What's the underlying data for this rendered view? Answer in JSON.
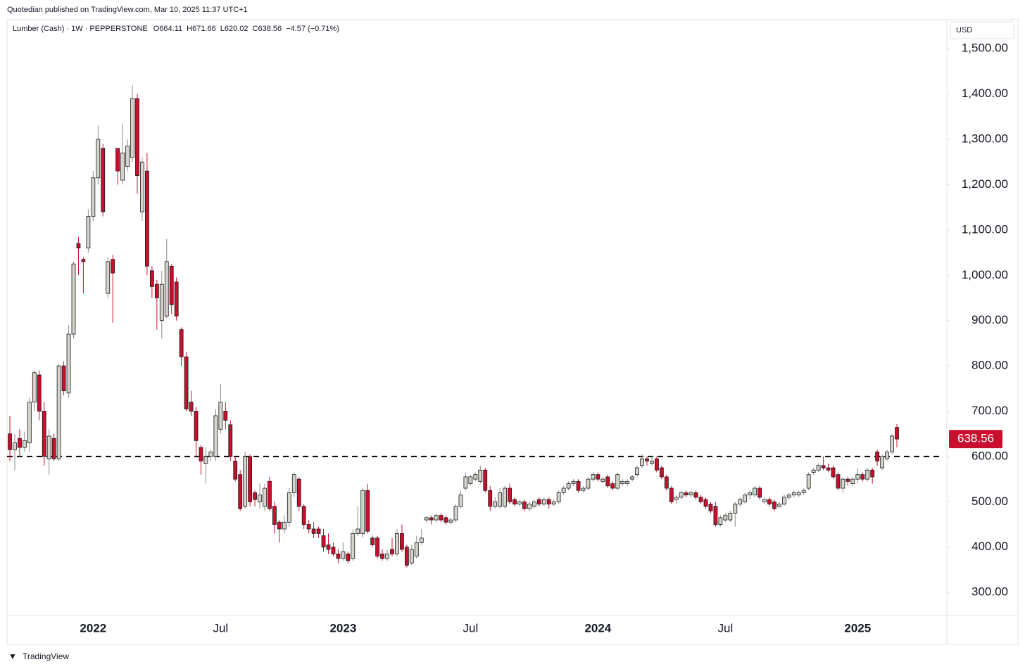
{
  "publisher": "Quotedian published on TradingView.com, Mar 10, 2025 11:37 UTC+1",
  "footer": "TradingView",
  "chart_data": {
    "type": "candlestick",
    "title": "Lumber (Cash) · 1W · PEPPERSTONE",
    "ohlc_prefixes": [
      "O",
      "H",
      "L",
      "C"
    ],
    "change": "−4.57 (−0.71%)",
    "currency": "USD",
    "up_color": "#d6d3cc",
    "down_color": "#c8102e",
    "hline": 600,
    "ylim": [
      249,
      1564
    ],
    "yticks": [
      {
        "value": 300,
        "label": "300.00"
      },
      {
        "value": 400,
        "label": "400.00"
      },
      {
        "value": 500,
        "label": "500.00"
      },
      {
        "value": 600,
        "label": "600.00"
      },
      {
        "value": 700,
        "label": "700.00"
      },
      {
        "value": 800,
        "label": "800.00"
      },
      {
        "value": 900,
        "label": "900.00"
      },
      {
        "value": 1000,
        "label": "1,000.00"
      },
      {
        "value": 1100,
        "label": "1,100.00"
      },
      {
        "value": 1200,
        "label": "1,200.00"
      },
      {
        "value": 1300,
        "label": "1,300.00"
      },
      {
        "value": 1400,
        "label": "1,400.00"
      },
      {
        "value": 1500,
        "label": "1,500.00"
      }
    ],
    "categories": [
      null,
      null,
      null,
      null,
      null,
      null,
      null,
      null,
      null,
      null,
      null,
      null,
      null,
      null,
      null,
      null,
      null,
      "2022",
      null,
      null,
      null,
      null,
      null,
      null,
      null,
      null,
      null,
      null,
      null,
      null,
      null,
      null,
      null,
      null,
      null,
      null,
      null,
      null,
      null,
      null,
      null,
      null,
      null,
      "Jul",
      null,
      null,
      null,
      null,
      null,
      null,
      null,
      null,
      null,
      null,
      null,
      null,
      null,
      null,
      null,
      null,
      null,
      null,
      null,
      null,
      null,
      null,
      null,
      null,
      "2023",
      null,
      null,
      null,
      null,
      null,
      null,
      null,
      null,
      null,
      null,
      null,
      null,
      null,
      null,
      null,
      null,
      null,
      null,
      null,
      null,
      null,
      null,
      null,
      null,
      null,
      "Jul",
      null,
      null,
      null,
      null,
      null,
      null,
      null,
      null,
      null,
      null,
      null,
      null,
      null,
      null,
      null,
      null,
      null,
      null,
      null,
      null,
      null,
      null,
      null,
      null,
      null,
      "2024",
      null,
      null,
      null,
      null,
      null,
      null,
      null,
      null,
      null,
      null,
      null,
      null,
      null,
      null,
      null,
      null,
      null,
      null,
      null,
      null,
      null,
      null,
      null,
      null,
      null,
      "Jul",
      null,
      null,
      null,
      null,
      null,
      null,
      null,
      null,
      null,
      null,
      null,
      null,
      null,
      null,
      null,
      null,
      null,
      null,
      null,
      null,
      null,
      null,
      null,
      null,
      null,
      null,
      "2025",
      null,
      null,
      null,
      null,
      null,
      null,
      null,
      null
    ],
    "open": [
      650,
      615,
      640,
      620,
      630,
      720,
      780,
      700,
      595,
      640,
      595,
      800,
      740,
      870,
      1070,
      1035,
      1060,
      1130,
      1215,
      1280,
      960,
      1035,
      1280,
      1210,
      1240,
      1260,
      1390,
      1140,
      1230,
      1010,
      980,
      900,
      910,
      1020,
      985,
      880,
      820,
      720,
      700,
      620,
      585,
      600,
      600,
      660,
      700,
      670,
      590,
      560,
      490,
      600,
      520,
      500,
      490,
      545,
      490,
      455,
      440,
      455,
      520,
      550,
      490,
      450,
      440,
      440,
      425,
      405,
      400,
      385,
      375,
      385,
      375,
      430,
      430,
      525,
      420,
      420,
      385,
      375,
      395,
      385,
      430,
      400,
      365,
      380,
      410,
      460,
      465,
      460,
      470,
      465,
      455,
      460,
      490,
      530,
      540,
      550,
      545,
      570,
      525,
      490,
      490,
      490,
      530,
      505,
      495,
      500,
      485,
      490,
      505,
      495,
      505,
      495,
      500,
      520,
      530,
      540,
      545,
      525,
      530,
      550,
      560,
      545,
      555,
      540,
      530,
      540,
      540,
      550,
      560,
      580,
      595,
      585,
      595,
      575,
      555,
      530,
      505,
      510,
      520,
      515,
      520,
      510,
      505,
      495,
      490,
      450,
      460,
      460,
      475,
      495,
      500,
      515,
      515,
      530,
      500,
      505,
      500,
      490,
      495,
      510,
      515,
      515,
      520,
      530,
      565,
      570,
      580,
      575,
      575,
      560,
      530,
      550,
      540,
      550,
      560,
      550,
      570,
      610,
      575,
      595,
      610,
      664.11
    ],
    "high": [
      690,
      650,
      660,
      655,
      730,
      790,
      790,
      720,
      660,
      650,
      805,
      810,
      890,
      1030,
      1085,
      1040,
      1145,
      1230,
      1330,
      1290,
      1040,
      1045,
      1280,
      1335,
      1300,
      1420,
      1400,
      1260,
      1270,
      1020,
      990,
      1010,
      1080,
      1025,
      995,
      885,
      830,
      745,
      710,
      625,
      620,
      615,
      705,
      760,
      720,
      680,
      600,
      570,
      610,
      605,
      525,
      540,
      540,
      555,
      500,
      460,
      470,
      530,
      565,
      555,
      495,
      460,
      455,
      445,
      440,
      430,
      410,
      395,
      410,
      390,
      440,
      490,
      530,
      540,
      425,
      425,
      395,
      395,
      420,
      440,
      450,
      405,
      405,
      425,
      440,
      468,
      470,
      475,
      475,
      470,
      465,
      495,
      525,
      565,
      560,
      565,
      580,
      575,
      535,
      510,
      530,
      535,
      540,
      510,
      505,
      505,
      500,
      505,
      510,
      510,
      510,
      505,
      525,
      535,
      545,
      550,
      550,
      535,
      555,
      565,
      565,
      555,
      560,
      545,
      565,
      550,
      550,
      560,
      580,
      605,
      600,
      600,
      600,
      580,
      560,
      535,
      515,
      525,
      525,
      525,
      525,
      515,
      510,
      500,
      500,
      470,
      475,
      480,
      500,
      510,
      520,
      525,
      535,
      535,
      510,
      510,
      505,
      500,
      515,
      520,
      525,
      525,
      530,
      565,
      575,
      585,
      600,
      585,
      580,
      565,
      555,
      555,
      555,
      575,
      565,
      575,
      575,
      615,
      605,
      615,
      650,
      671.66
    ],
    "low": [
      590,
      570,
      600,
      610,
      610,
      700,
      680,
      580,
      560,
      590,
      590,
      735,
      730,
      860,
      1000,
      960,
      1050,
      1120,
      1200,
      1130,
      950,
      895,
      1200,
      1200,
      1230,
      1250,
      1180,
      1120,
      1000,
      950,
      880,
      860,
      905,
      915,
      900,
      800,
      700,
      690,
      600,
      560,
      540,
      590,
      590,
      650,
      660,
      590,
      545,
      480,
      485,
      490,
      490,
      485,
      480,
      480,
      430,
      410,
      430,
      445,
      510,
      480,
      440,
      430,
      420,
      420,
      390,
      385,
      380,
      365,
      370,
      365,
      370,
      425,
      420,
      430,
      400,
      375,
      370,
      370,
      380,
      380,
      390,
      355,
      360,
      375,
      405,
      455,
      450,
      455,
      455,
      450,
      450,
      455,
      485,
      525,
      535,
      545,
      540,
      520,
      480,
      485,
      485,
      485,
      495,
      490,
      490,
      480,
      480,
      485,
      490,
      490,
      485,
      490,
      495,
      515,
      525,
      535,
      520,
      520,
      525,
      545,
      545,
      540,
      530,
      525,
      525,
      535,
      535,
      545,
      555,
      575,
      580,
      580,
      565,
      550,
      525,
      495,
      495,
      505,
      510,
      510,
      505,
      495,
      485,
      475,
      445,
      445,
      455,
      455,
      445,
      490,
      495,
      505,
      510,
      505,
      495,
      490,
      480,
      485,
      490,
      505,
      510,
      510,
      515,
      525,
      560,
      565,
      570,
      565,
      550,
      525,
      520,
      535,
      535,
      540,
      545,
      545,
      540,
      580,
      570,
      590,
      605,
      620.02
    ],
    "close": [
      615,
      630,
      620,
      635,
      720,
      785,
      700,
      600,
      645,
      595,
      800,
      745,
      870,
      1025,
      1060,
      1030,
      1130,
      1215,
      1300,
      1140,
      1030,
      1005,
      1230,
      1270,
      1285,
      1390,
      1220,
      1250,
      1020,
      975,
      950,
      980,
      1030,
      935,
      910,
      820,
      705,
      700,
      635,
      590,
      600,
      610,
      690,
      720,
      680,
      600,
      550,
      485,
      600,
      500,
      505,
      515,
      530,
      485,
      450,
      440,
      455,
      520,
      560,
      490,
      450,
      440,
      430,
      430,
      400,
      395,
      385,
      375,
      390,
      370,
      430,
      440,
      525,
      435,
      405,
      380,
      375,
      385,
      385,
      430,
      395,
      360,
      395,
      410,
      420,
      465,
      460,
      470,
      460,
      455,
      460,
      490,
      515,
      555,
      555,
      560,
      570,
      525,
      490,
      500,
      520,
      530,
      500,
      495,
      500,
      485,
      495,
      500,
      495,
      505,
      495,
      500,
      520,
      530,
      540,
      545,
      525,
      530,
      550,
      560,
      550,
      550,
      535,
      530,
      560,
      545,
      545,
      555,
      575,
      595,
      590,
      590,
      570,
      555,
      530,
      500,
      510,
      520,
      515,
      520,
      510,
      500,
      490,
      480,
      450,
      465,
      470,
      475,
      495,
      505,
      515,
      520,
      530,
      510,
      505,
      495,
      485,
      495,
      510,
      515,
      520,
      520,
      525,
      560,
      570,
      580,
      575,
      570,
      555,
      530,
      550,
      545,
      550,
      560,
      550,
      570,
      555,
      590,
      600,
      610,
      645,
      638.56
    ]
  }
}
